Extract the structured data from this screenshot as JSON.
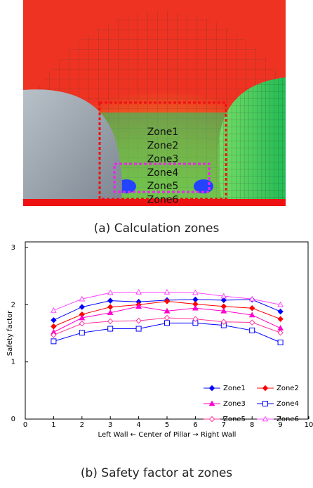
{
  "figure_a": {
    "zone_labels": [
      "Zone1",
      "Zone2",
      "Zone3",
      "Zone4",
      "Zone5",
      "Zone6"
    ],
    "caption": "(a) Calculation zones"
  },
  "chart_data": {
    "type": "line",
    "x_label": "Left Wall ← Center of Pillar → Right Wall",
    "y_label": "Safety factor",
    "x": [
      1,
      2,
      3,
      4,
      5,
      6,
      7,
      8,
      9
    ],
    "xlim": [
      0,
      10
    ],
    "xticks": [
      0,
      1,
      2,
      3,
      4,
      5,
      6,
      7,
      8,
      9,
      10
    ],
    "ylim": [
      0,
      3
    ],
    "yticks": [
      0,
      1,
      2,
      3
    ],
    "grid": false,
    "legend": "lower right",
    "series": [
      {
        "name": "Zone1",
        "color": "#0000ff",
        "marker": "diamond",
        "filled": true,
        "values": [
          1.73,
          1.96,
          2.07,
          2.05,
          2.08,
          2.09,
          2.08,
          2.09,
          1.88
        ]
      },
      {
        "name": "Zone2",
        "color": "#ff0000",
        "marker": "diamond",
        "filled": true,
        "values": [
          1.62,
          1.83,
          1.96,
          2.0,
          2.06,
          2.01,
          1.97,
          1.94,
          1.75
        ]
      },
      {
        "name": "Zone3",
        "color": "#ff00cc",
        "marker": "triangle",
        "filled": true,
        "values": [
          1.52,
          1.77,
          1.86,
          1.97,
          1.89,
          1.94,
          1.89,
          1.82,
          1.59
        ]
      },
      {
        "name": "Zone4",
        "color": "#0000ff",
        "marker": "square",
        "filled": false,
        "values": [
          1.36,
          1.51,
          1.58,
          1.58,
          1.68,
          1.68,
          1.64,
          1.55,
          1.34
        ]
      },
      {
        "name": "Zone5",
        "color": "#ff3399",
        "marker": "diamond",
        "filled": false,
        "values": [
          1.47,
          1.67,
          1.71,
          1.72,
          1.77,
          1.75,
          1.7,
          1.69,
          1.51
        ]
      },
      {
        "name": "Zone6",
        "color": "#ff44ff",
        "marker": "triangle",
        "filled": false,
        "values": [
          1.9,
          2.1,
          2.21,
          2.22,
          2.22,
          2.21,
          2.15,
          2.1,
          2.0
        ]
      }
    ]
  },
  "caption_b": "(b) Safety factor at zones"
}
